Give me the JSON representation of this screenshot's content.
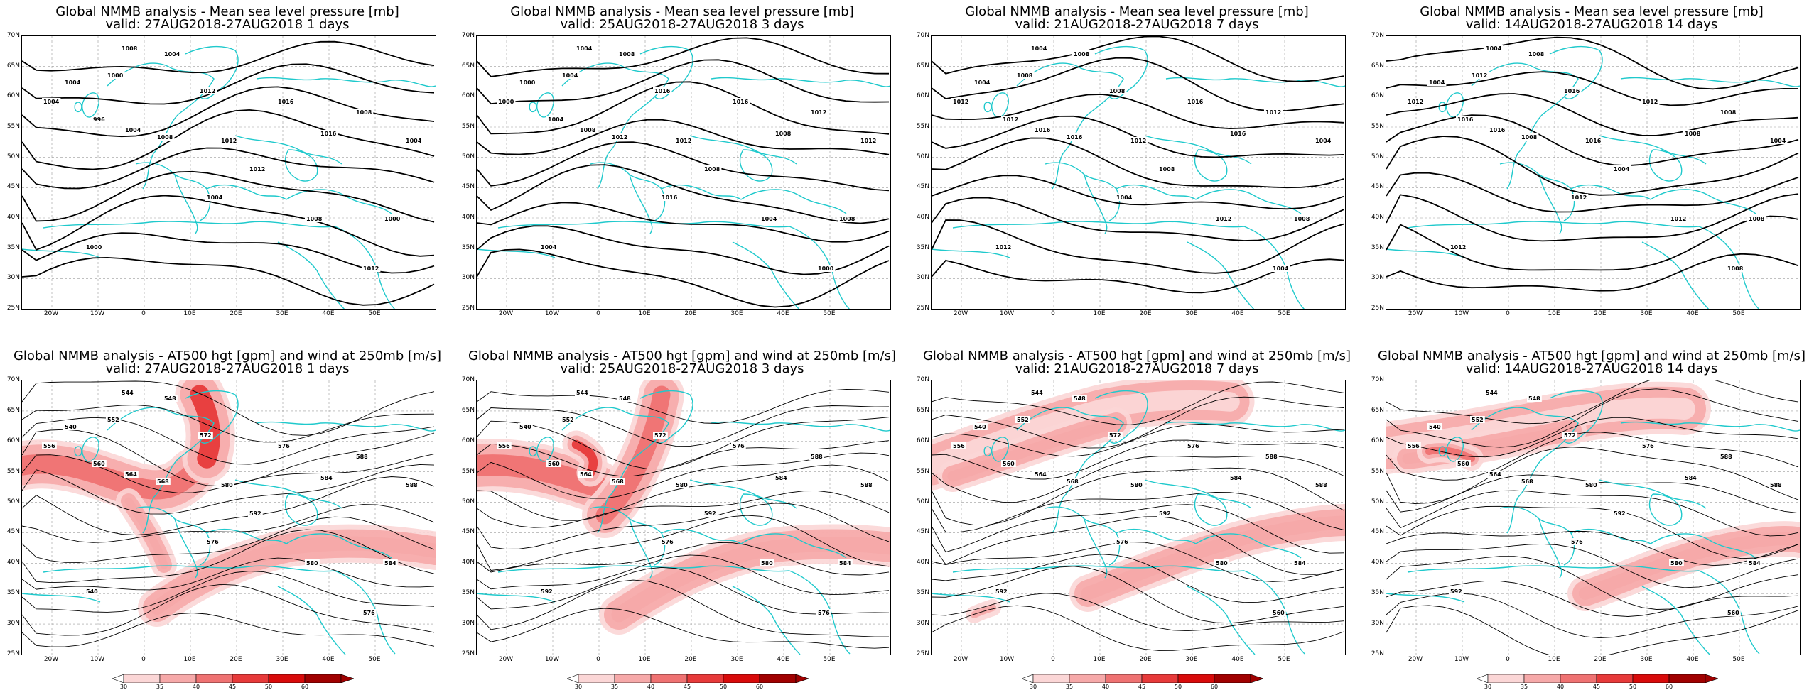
{
  "colors": {
    "coast": "#1fc9cc",
    "contour": "#000000",
    "grid": "#9a9a9a",
    "jet": [
      "#ffffff",
      "#fbd6d6",
      "#f6a9a9",
      "#ef7272",
      "#e73a3a",
      "#d80a0a",
      "#a00000"
    ]
  },
  "y_ticks": [
    "70N",
    "65N",
    "60N",
    "55N",
    "50N",
    "45N",
    "40N",
    "35N",
    "30N",
    "25N"
  ],
  "x_ticks": [
    "20W",
    "10W",
    "0",
    "10E",
    "20E",
    "30E",
    "40E",
    "50E"
  ],
  "colorbar": {
    "ticks": [
      "30",
      "35",
      "40",
      "45",
      "50",
      "60"
    ],
    "unit": "m/s"
  },
  "panels": [
    {
      "id": "mslp-1d",
      "row": "top",
      "title": "Global NMMB analysis - Mean sea level pressure [mb]",
      "valid": "valid: 27AUG2018-27AUG2018   1 days",
      "labels": [
        "1004",
        "1008",
        "1004",
        "1000",
        "1004",
        "996",
        "1004",
        "1008",
        "1012",
        "1016",
        "1012",
        "1016",
        "1008",
        "1012",
        "1004",
        "1008",
        "1000",
        "1004",
        "1000",
        "1012"
      ]
    },
    {
      "id": "mslp-3d",
      "row": "top",
      "title": "Global NMMB analysis - Mean sea level pressure [mb]",
      "valid": "valid: 25AUG2018-27AUG2018   3 days",
      "labels": [
        "1000",
        "1004",
        "1008",
        "1004",
        "1000",
        "1004",
        "1008",
        "1012",
        "1016",
        "1016",
        "1012",
        "1008",
        "1012",
        "1008",
        "1016",
        "1004",
        "1008",
        "1012",
        "1004",
        "1000"
      ]
    },
    {
      "id": "mslp-7d",
      "row": "top",
      "title": "Global NMMB analysis - Mean sea level pressure [mb]",
      "valid": "valid: 21AUG2018-27AUG2018   7 days",
      "labels": [
        "1004",
        "1004",
        "1008",
        "1008",
        "1012",
        "1012",
        "1016",
        "1016",
        "1008",
        "1016",
        "1012",
        "1016",
        "1012",
        "1008",
        "1004",
        "1012",
        "1008",
        "1004",
        "1012",
        "1004"
      ]
    },
    {
      "id": "mslp-14d",
      "row": "top",
      "title": "Global NMMB analysis - Mean sea level pressure [mb]",
      "valid": "valid: 14AUG2018-27AUG2018   14 days",
      "labels": [
        "1004",
        "1004",
        "1008",
        "1012",
        "1012",
        "1016",
        "1016",
        "1008",
        "1016",
        "1012",
        "1016",
        "1008",
        "1008",
        "1004",
        "1012",
        "1012",
        "1008",
        "1004",
        "1012",
        "1008"
      ]
    },
    {
      "id": "z500-1d",
      "row": "bot",
      "title": "Global NMMB analysis - AT500 hgt [gpm] and wind at 250mb [m/s]",
      "valid": "valid: 27AUG2018-27AUG2018   1 days",
      "labels": [
        "540",
        "544",
        "548",
        "552",
        "556",
        "560",
        "564",
        "568",
        "572",
        "576",
        "580",
        "584",
        "588",
        "592",
        "576",
        "580",
        "584",
        "588",
        "540",
        "576"
      ]
    },
    {
      "id": "z500-3d",
      "row": "bot",
      "title": "Global NMMB analysis - AT500 hgt [gpm] and wind at 250mb [m/s]",
      "valid": "valid: 25AUG2018-27AUG2018   3 days",
      "labels": [
        "540",
        "544",
        "548",
        "552",
        "556",
        "560",
        "564",
        "568",
        "572",
        "576",
        "580",
        "584",
        "588",
        "592",
        "576",
        "580",
        "584",
        "588",
        "592",
        "576"
      ]
    },
    {
      "id": "z500-7d",
      "row": "bot",
      "title": "Global NMMB analysis - AT500 hgt [gpm] and wind at 250mb [m/s]",
      "valid": "valid: 21AUG2018-27AUG2018   7 days",
      "labels": [
        "540",
        "544",
        "548",
        "552",
        "556",
        "560",
        "564",
        "568",
        "572",
        "576",
        "580",
        "584",
        "588",
        "592",
        "576",
        "580",
        "584",
        "588",
        "592",
        "560"
      ]
    },
    {
      "id": "z500-14d",
      "row": "bot",
      "title": "Global NMMB analysis - AT500 hgt [gpm] and wind at 250mb [m/s]",
      "valid": "valid: 14AUG2018-27AUG2018   14 days",
      "labels": [
        "540",
        "544",
        "548",
        "552",
        "556",
        "560",
        "564",
        "568",
        "572",
        "576",
        "580",
        "584",
        "588",
        "592",
        "576",
        "580",
        "584",
        "588",
        "592",
        "560"
      ]
    }
  ]
}
